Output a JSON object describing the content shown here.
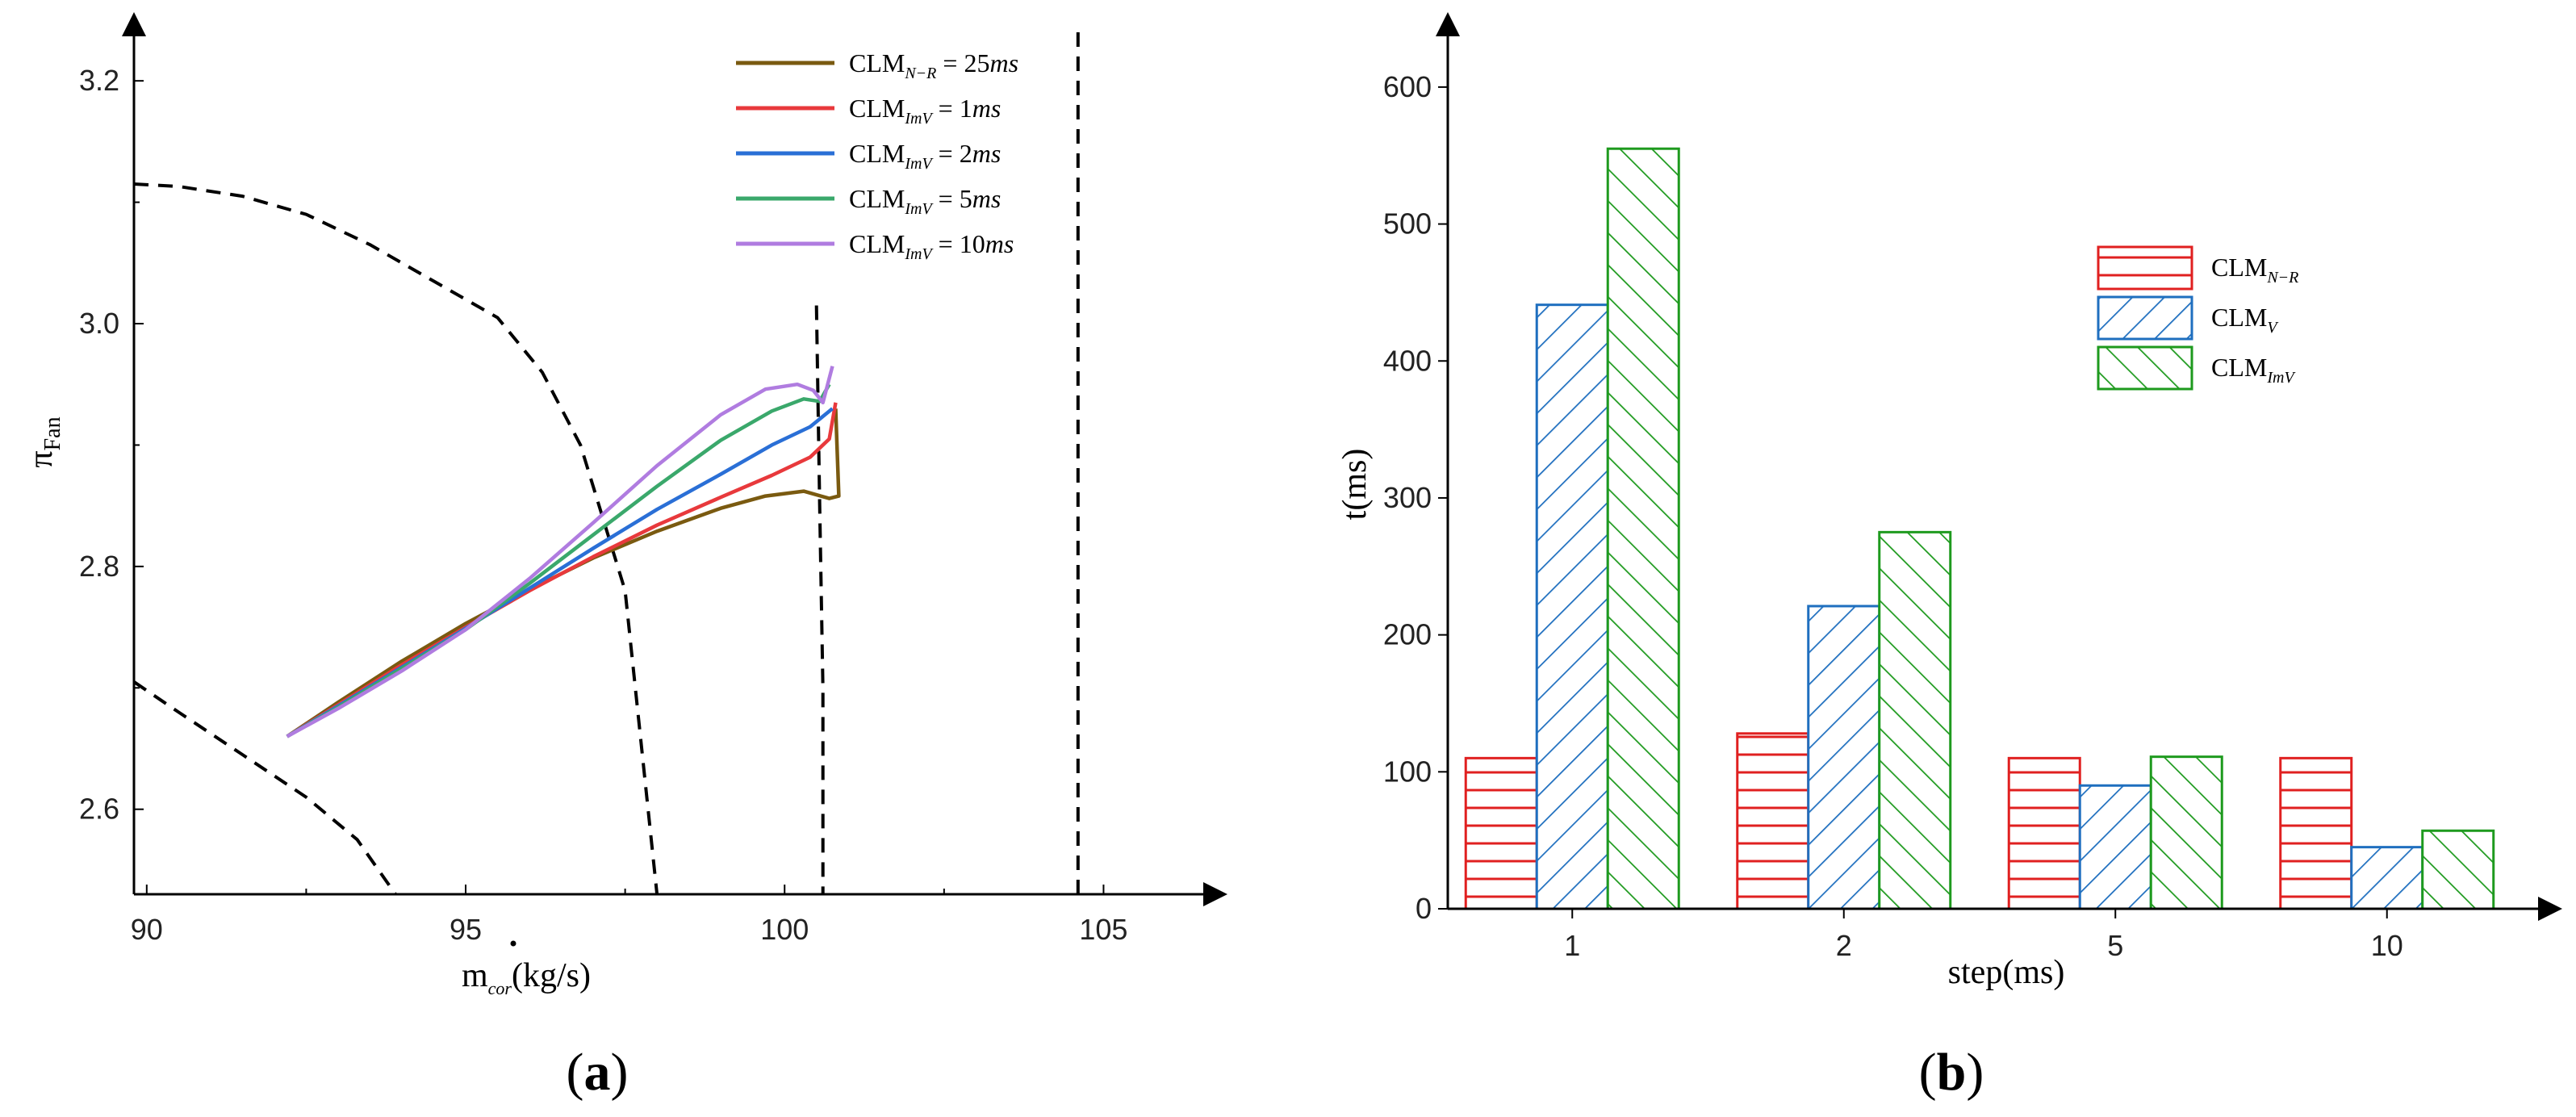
{
  "chart_data": [
    {
      "type": "line",
      "panel_label": "(a)",
      "panel_label_parts": [
        "(",
        "a",
        ")"
      ],
      "xlabel_prefix": "m",
      "xlabel_sub": "cor",
      "xlabel_suffix": "(kg/s)",
      "ylabel_prefix": "π",
      "ylabel_sub": "Fan",
      "xlim": [
        89.8,
        106.5
      ],
      "ylim": [
        2.53,
        3.24
      ],
      "xticks": [
        90,
        95,
        100,
        105
      ],
      "xtick_labels": [
        "90",
        "95",
        "100",
        "105"
      ],
      "yticks": [
        2.6,
        2.8,
        3.0,
        3.2
      ],
      "ytick_labels": [
        "2.6",
        "2.8",
        "3.0",
        "3.2"
      ],
      "legend_position": "top-right",
      "series": [
        {
          "name": "CLM_N-R = 25ms",
          "label_main": "CLM",
          "label_sub": "N−R",
          "label_eq": " = 25",
          "label_unit": "ms",
          "color": "#7a5a10",
          "x": [
            92.2,
            93.0,
            94.0,
            95.0,
            96.0,
            97.0,
            98.0,
            99.0,
            99.7,
            100.3,
            100.7,
            100.85,
            100.8
          ],
          "y": [
            2.66,
            2.688,
            2.722,
            2.753,
            2.781,
            2.807,
            2.829,
            2.848,
            2.858,
            2.862,
            2.856,
            2.858,
            2.93
          ]
        },
        {
          "name": "CLM_ImV = 1ms",
          "label_main": "CLM",
          "label_sub": "ImV",
          "label_eq": " = 1",
          "label_unit": "ms",
          "color": "#e8393c",
          "x": [
            92.2,
            93.0,
            94.0,
            95.0,
            96.0,
            97.0,
            98.0,
            99.0,
            99.8,
            100.4,
            100.7,
            100.8
          ],
          "y": [
            2.66,
            2.686,
            2.719,
            2.75,
            2.78,
            2.808,
            2.834,
            2.857,
            2.875,
            2.89,
            2.905,
            2.935
          ]
        },
        {
          "name": "CLM_ImV = 2ms",
          "label_main": "CLM",
          "label_sub": "ImV",
          "label_eq": " = 2",
          "label_unit": "ms",
          "color": "#2a6fd6",
          "x": [
            92.2,
            93.0,
            94.0,
            95.0,
            96.0,
            97.0,
            98.0,
            99.0,
            99.8,
            100.4,
            100.75
          ],
          "y": [
            2.66,
            2.685,
            2.717,
            2.749,
            2.782,
            2.815,
            2.847,
            2.876,
            2.9,
            2.915,
            2.93
          ]
        },
        {
          "name": "CLM_ImV = 5ms",
          "label_main": "CLM",
          "label_sub": "ImV",
          "label_eq": " = 5",
          "label_unit": "ms",
          "color": "#3aa86b",
          "x": [
            92.2,
            93.0,
            94.0,
            95.0,
            96.0,
            97.0,
            98.0,
            99.0,
            99.8,
            100.3,
            100.55,
            100.7
          ],
          "y": [
            2.66,
            2.684,
            2.716,
            2.748,
            2.786,
            2.826,
            2.866,
            2.904,
            2.928,
            2.938,
            2.936,
            2.95
          ]
        },
        {
          "name": "CLM_ImV = 10ms",
          "label_main": "CLM",
          "label_sub": "ImV",
          "label_eq": " = 10",
          "label_unit": "ms",
          "color": "#b07ce0",
          "x": [
            92.2,
            93.0,
            94.0,
            95.0,
            96.0,
            97.0,
            98.0,
            99.0,
            99.7,
            100.2,
            100.45,
            100.6,
            100.75
          ],
          "y": [
            2.66,
            2.683,
            2.714,
            2.748,
            2.79,
            2.836,
            2.883,
            2.925,
            2.946,
            2.95,
            2.945,
            2.935,
            2.965
          ]
        }
      ],
      "dashed_lines": [
        {
          "x": [
            89.8,
            90.5,
            91.5,
            92.5,
            93.5,
            94.5,
            95.5,
            96.2,
            96.8,
            97.5,
            98.0
          ],
          "y": [
            3.115,
            3.113,
            3.105,
            3.09,
            3.065,
            3.035,
            3.005,
            2.96,
            2.9,
            2.78,
            2.53
          ]
        },
        {
          "x": [
            89.8,
            90.5,
            91.5,
            92.5,
            93.3,
            93.9
          ],
          "y": [
            2.705,
            2.68,
            2.645,
            2.61,
            2.575,
            2.53
          ]
        },
        {
          "x": [
            100.5,
            100.55,
            100.6,
            100.6
          ],
          "y": [
            3.015,
            2.85,
            2.7,
            2.53
          ]
        },
        {
          "x": [
            104.6,
            104.6
          ],
          "y": [
            2.53,
            3.24
          ]
        }
      ]
    },
    {
      "type": "bar",
      "panel_label": "(b)",
      "panel_label_parts": [
        "(",
        "b",
        ")"
      ],
      "xlabel": "step(ms)",
      "ylabel": "t(ms)",
      "categories": [
        "1",
        "2",
        "5",
        "10"
      ],
      "ylim": [
        0,
        640
      ],
      "yticks": [
        0,
        100,
        200,
        300,
        400,
        500,
        600
      ],
      "ytick_labels": [
        "0",
        "100",
        "200",
        "300",
        "400",
        "500",
        "600"
      ],
      "legend_position": "right",
      "series": [
        {
          "name": "CLM_N-R",
          "label_main": "CLM",
          "label_sub": "N−R",
          "color": "#e02020",
          "pattern": "horizontal",
          "values": [
            110,
            128,
            110,
            110
          ]
        },
        {
          "name": "CLM_V",
          "label_main": "CLM",
          "label_sub": "V",
          "color": "#1f6fbf",
          "pattern": "diagonal-down",
          "values": [
            441,
            221,
            90,
            45
          ]
        },
        {
          "name": "CLM_ImV",
          "label_main": "CLM",
          "label_sub": "ImV",
          "color": "#1e9a1e",
          "pattern": "diagonal-up",
          "values": [
            555,
            275,
            111,
            57
          ]
        }
      ]
    }
  ]
}
